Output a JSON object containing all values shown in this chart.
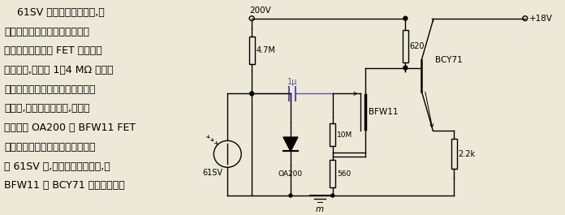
{
  "bg_color": "#ede8d8",
  "text_color": "#000000",
  "line_color": "#000000",
  "cap_color": "#5555aa",
  "fig_width": 6.96,
  "fig_height": 2.65,
  "dpi": 100,
  "chinese_lines": [
    "    61SV 为硫化铅光电元件,应",
    "用于不致冷红外检波器的通用放",
    "大器。第一级采用 FET 管以提高",
    "输入阻抗,与具有 1～4 MΩ 电阻的",
    "光电元件相匹配。因为光电元件在",
    "加电时,会出现瞬时高压,所以利",
    "用二极管 OA200 对 BFW11 FET",
    "管起保护作用。当光照射到光电元",
    "件 61SV 时,光信号变为电信号,经",
    "BFW11 和 BCY71 放大后输出。"
  ]
}
